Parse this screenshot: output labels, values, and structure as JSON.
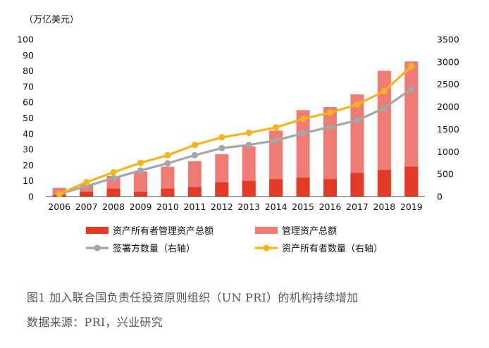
{
  "chart_data": {
    "type": "bar+line",
    "unit_label": "（万亿美元）",
    "categories": [
      "2006",
      "2007",
      "2008",
      "2009",
      "2010",
      "2011",
      "2012",
      "2013",
      "2014",
      "2015",
      "2016",
      "2017",
      "2018",
      "2019"
    ],
    "left_axis": {
      "ylim": [
        0,
        100
      ],
      "ticks": [
        "0",
        "10",
        "20",
        "30",
        "40",
        "50",
        "60",
        "70",
        "80",
        "90",
        "100"
      ]
    },
    "right_axis": {
      "ylim": [
        0,
        3500
      ],
      "ticks": [
        "0",
        "500",
        "1000",
        "1500",
        "2000",
        "2500",
        "3000",
        "3500"
      ]
    },
    "bar_series": [
      {
        "name": "资产所有者管理资产总额",
        "color": "#e23a25",
        "values": [
          1,
          3,
          5,
          3,
          5,
          6,
          9,
          10,
          11,
          12,
          11,
          15,
          17,
          19
        ]
      },
      {
        "name": "管理资产总额",
        "color": "#ef7b74",
        "values": [
          5.5,
          8,
          13,
          16,
          19,
          22.5,
          27,
          32,
          42,
          55,
          57,
          65,
          80,
          86
        ]
      }
    ],
    "line_series": [
      {
        "name": "签署方数量（右轴）",
        "color": "#a6a6a6",
        "values": [
          60,
          230,
          410,
          580,
          740,
          920,
          1080,
          1150,
          1250,
          1410,
          1550,
          1700,
          1970,
          2400
        ]
      },
      {
        "name": "资产所有者数量（右轴）",
        "color": "#f7b51d",
        "values": [
          60,
          320,
          540,
          750,
          920,
          1150,
          1320,
          1420,
          1540,
          1730,
          1870,
          2050,
          2350,
          2900
        ]
      }
    ]
  },
  "caption": {
    "figure_title": "图1 加入联合国负责任投资原则组织（UN PRI）的机构持续增加",
    "source": "数据来源：PRI，兴业研究"
  }
}
